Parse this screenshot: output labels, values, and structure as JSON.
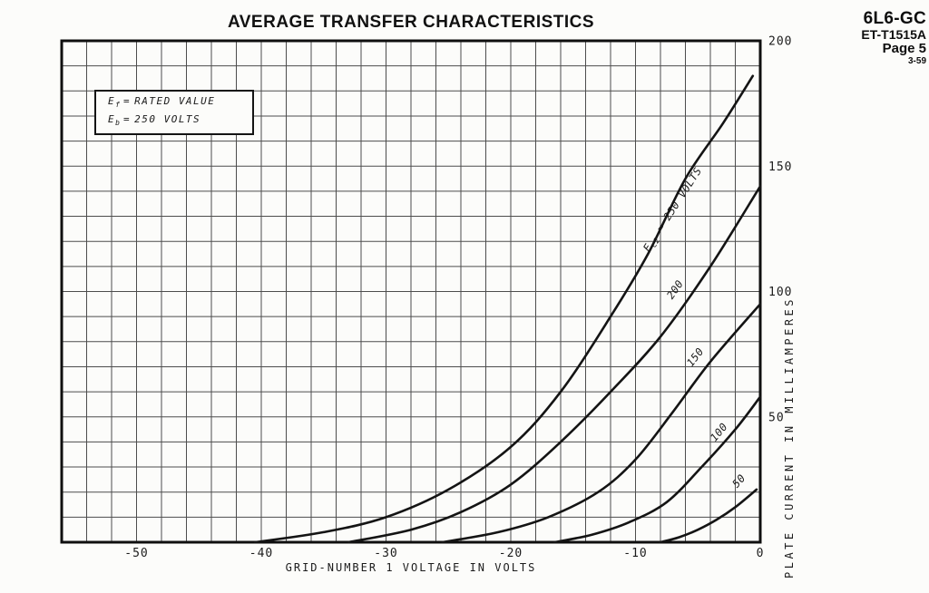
{
  "page": {
    "background": "#fcfcfa",
    "ink": "#161616"
  },
  "doc_info": {
    "tube_type": "6L6-GC",
    "sheet_number": "ET-T1515A",
    "page": "Page 5",
    "date_code": "3-59"
  },
  "conditions": {
    "lines": [
      {
        "symbol": "E",
        "subscript": "f",
        "eq": "=",
        "value": "RATED VALUE"
      },
      {
        "symbol": "E",
        "subscript": "b",
        "eq": "=",
        "value": "250 VOLTS"
      }
    ]
  },
  "chart_data": {
    "type": "line",
    "title": "AVERAGE TRANSFER CHARACTERISTICS",
    "xlabel": "GRID-NUMBER 1 VOLTAGE IN VOLTS",
    "ylabel": "PLATE CURRENT IN MILLIAMPERES",
    "xlim": [
      -56,
      0
    ],
    "ylim": [
      0,
      200
    ],
    "x_ticks": [
      -50,
      -40,
      -30,
      -20,
      -10,
      0
    ],
    "y_ticks": [
      50,
      100,
      150,
      200
    ],
    "grid": {
      "on": true,
      "x_step": 2,
      "y_step": 10
    },
    "legend_position": "labels-on-curves",
    "colors": {
      "curve": "#141414",
      "grid_line": "#4d4d4d",
      "frame": "#0f0f0f"
    },
    "series": [
      {
        "name": "Ec2 = 250 VOLTS",
        "label_parts": [
          {
            "text": "E"
          },
          {
            "text": "c2",
            "sub": true
          },
          {
            "text": " = 250 VOLTS"
          }
        ],
        "label_at": [
          -6.8,
          132
        ],
        "label_rotation": -57,
        "points": [
          [
            -40.5,
            0
          ],
          [
            -35,
            4
          ],
          [
            -30,
            10
          ],
          [
            -25,
            21
          ],
          [
            -20,
            38
          ],
          [
            -16,
            60
          ],
          [
            -12,
            90
          ],
          [
            -9,
            115
          ],
          [
            -6,
            145
          ],
          [
            -3,
            167
          ],
          [
            -0.6,
            186
          ]
        ]
      },
      {
        "name": "Ec2 = 200 VOLTS",
        "label_parts": [
          {
            "text": "200"
          }
        ],
        "label_at": [
          -6.6,
          100
        ],
        "label_rotation": -55,
        "points": [
          [
            -33,
            0
          ],
          [
            -28,
            5
          ],
          [
            -24,
            12
          ],
          [
            -20,
            23
          ],
          [
            -16,
            40
          ],
          [
            -12,
            60
          ],
          [
            -8,
            82
          ],
          [
            -4,
            110
          ],
          [
            0,
            142
          ]
        ]
      },
      {
        "name": "Ec2 = 150 VOLTS",
        "label_parts": [
          {
            "text": "150"
          }
        ],
        "label_at": [
          -5.0,
          73
        ],
        "label_rotation": -52,
        "points": [
          [
            -25.5,
            0
          ],
          [
            -21,
            4
          ],
          [
            -17,
            10
          ],
          [
            -13,
            20
          ],
          [
            -10,
            33
          ],
          [
            -7,
            52
          ],
          [
            -4,
            72
          ],
          [
            0,
            95
          ]
        ]
      },
      {
        "name": "Ec2 = 100 VOLTS",
        "label_parts": [
          {
            "text": "100"
          }
        ],
        "label_at": [
          -3.1,
          43
        ],
        "label_rotation": -50,
        "points": [
          [
            -16.5,
            0
          ],
          [
            -13.5,
            3
          ],
          [
            -10.5,
            8
          ],
          [
            -7.5,
            16
          ],
          [
            -4.7,
            30
          ],
          [
            -2,
            45
          ],
          [
            0,
            58
          ]
        ]
      },
      {
        "name": "Ec2 = 50 VOLTS",
        "label_parts": [
          {
            "text": "50"
          }
        ],
        "label_at": [
          -1.5,
          23.5
        ],
        "label_rotation": -48,
        "points": [
          [
            -8,
            0
          ],
          [
            -6.5,
            2
          ],
          [
            -5,
            5
          ],
          [
            -3.5,
            9
          ],
          [
            -2,
            14
          ],
          [
            -0.3,
            21
          ]
        ]
      }
    ]
  }
}
